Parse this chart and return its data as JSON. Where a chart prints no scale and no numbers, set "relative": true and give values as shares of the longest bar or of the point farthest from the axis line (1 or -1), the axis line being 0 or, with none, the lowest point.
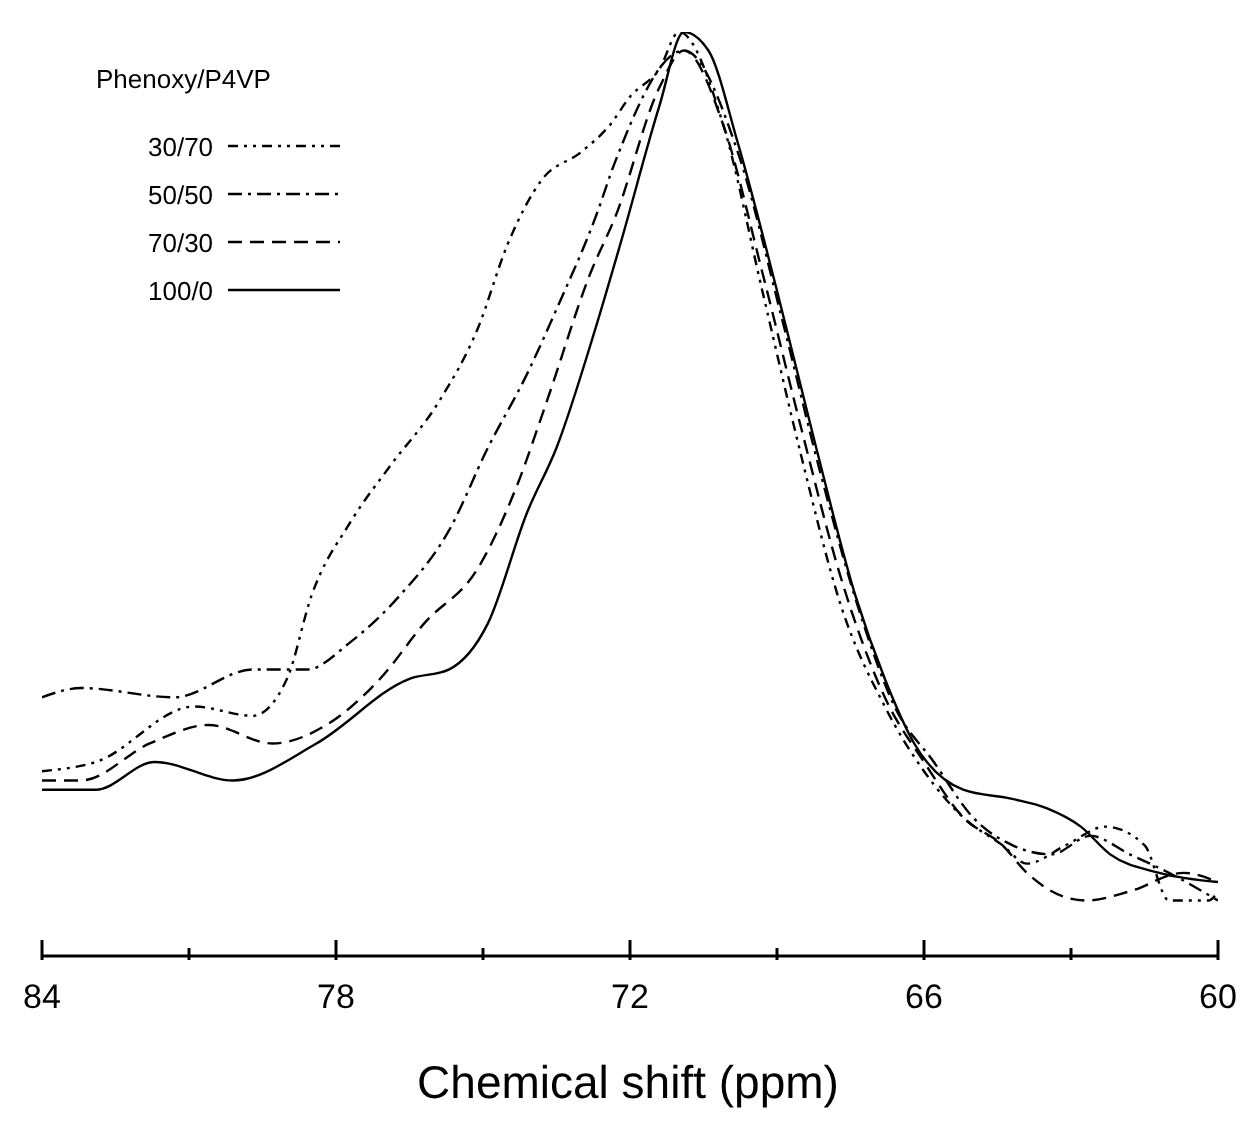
{
  "chart_data": {
    "type": "line",
    "relative": true,
    "xlabel": "Chemical shift (ppm)",
    "legend_title": "Phenoxy/P4VP",
    "legend": "top left",
    "grid": false,
    "marker": "none",
    "tick_labels": "x",
    "xlim": [
      84,
      60
    ],
    "xticks": [
      84,
      {
        "value": 81,
        "label": null
      },
      78,
      {
        "value": 75,
        "label": null
      },
      72,
      {
        "value": 69,
        "label": null
      },
      66,
      {
        "value": 63,
        "label": null
      },
      60
    ],
    "series": [
      {
        "name": "30/70",
        "color": "#000000",
        "line_style": "dashdotdot",
        "x": [
          84,
          82.9,
          80.9,
          79.7,
          79.0,
          78.5,
          77.7,
          76.9,
          75.9,
          75.1,
          74.5,
          73.8,
          73.0,
          72.4,
          72.0,
          71.4,
          71.0,
          70.1,
          69.3,
          68.5,
          67.7,
          66.8,
          66.0,
          65.2,
          64.4,
          63.9,
          63.1,
          62.3,
          61.5,
          61.0,
          60.2,
          60
        ],
        "values": [
          0.2,
          0.21,
          0.27,
          0.26,
          0.3,
          0.39,
          0.47,
          0.53,
          0.6,
          0.68,
          0.77,
          0.84,
          0.87,
          0.9,
          0.93,
          0.96,
          1.0,
          0.9,
          0.72,
          0.54,
          0.38,
          0.27,
          0.2,
          0.15,
          0.12,
          0.1,
          0.12,
          0.14,
          0.12,
          0.06,
          0.06,
          0.07
        ]
      },
      {
        "name": "50/50",
        "color": "#000000",
        "line_style": "dashdot",
        "x": [
          84,
          83.2,
          81.3,
          79.7,
          78.6,
          77.7,
          76.7,
          75.7,
          74.9,
          74.1,
          73.5,
          72.7,
          72.3,
          70.9,
          69.8,
          68.9,
          68.1,
          67.3,
          66.6,
          65.8,
          65.0,
          64.2,
          63.4,
          62.6,
          61.8,
          61.0,
          60
        ],
        "values": [
          0.28,
          0.29,
          0.28,
          0.31,
          0.31,
          0.34,
          0.39,
          0.46,
          0.55,
          0.63,
          0.7,
          0.8,
          0.86,
          0.98,
          0.87,
          0.69,
          0.52,
          0.37,
          0.27,
          0.21,
          0.15,
          0.12,
          0.11,
          0.13,
          0.11,
          0.09,
          0.06
        ]
      },
      {
        "name": "70/30",
        "color": "#000000",
        "line_style": "dashed",
        "x": [
          84,
          83.2,
          81.8,
          80.6,
          79.3,
          78.2,
          77.1,
          76.2,
          75.1,
          74.3,
          73.7,
          72.8,
          72.3,
          71.4,
          70.9,
          70.1,
          69.3,
          68.5,
          67.7,
          66.8,
          66.0,
          65.2,
          64.4,
          63.9,
          62.7,
          61.8,
          60.7,
          60
        ],
        "values": [
          0.19,
          0.19,
          0.23,
          0.25,
          0.23,
          0.25,
          0.3,
          0.36,
          0.42,
          0.51,
          0.6,
          0.74,
          0.8,
          0.94,
          0.98,
          0.9,
          0.74,
          0.57,
          0.41,
          0.28,
          0.21,
          0.15,
          0.12,
          0.09,
          0.06,
          0.07,
          0.09,
          0.08
        ]
      },
      {
        "name": "100/0",
        "color": "#000000",
        "line_style": "solid",
        "x": [
          84,
          82.9,
          81.7,
          80.1,
          78.4,
          76.5,
          75.7,
          74.9,
          74.1,
          73.5,
          72.7,
          72.2,
          71.4,
          70.9,
          70.4,
          69.8,
          69.0,
          68.2,
          67.4,
          66.8,
          66.2,
          65.2,
          64.2,
          63.5,
          62.8,
          62.2,
          61.2,
          60
        ],
        "values": [
          0.18,
          0.18,
          0.21,
          0.19,
          0.23,
          0.3,
          0.31,
          0.36,
          0.48,
          0.55,
          0.68,
          0.77,
          0.92,
          1.0,
          0.98,
          0.88,
          0.72,
          0.55,
          0.39,
          0.3,
          0.23,
          0.18,
          0.17,
          0.16,
          0.14,
          0.11,
          0.09,
          0.08
        ]
      }
    ]
  }
}
